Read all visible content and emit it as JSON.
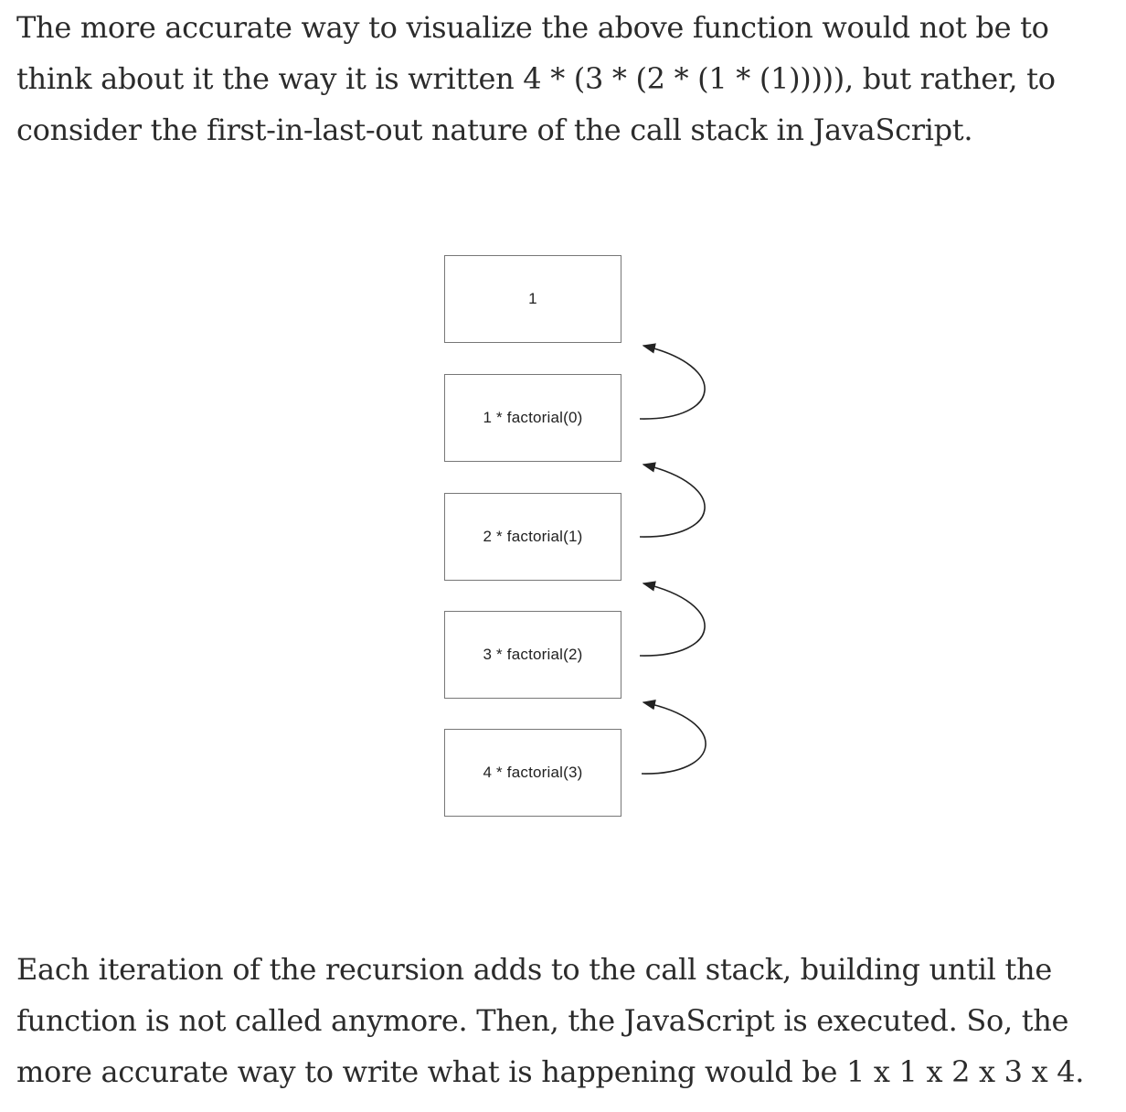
{
  "intro_paragraph": "The more accurate way to visualize the above function would not be to think about it the way it is written 4 * (3 * (2 * (1 * (1))))), but rather, to consider the first-in-last-out nature of the call stack in JavaScript.",
  "call_stack_diagram": {
    "frames": [
      {
        "label": "1"
      },
      {
        "label": "1 * factorial(0)"
      },
      {
        "label": "2 * factorial(1)"
      },
      {
        "label": "3 * factorial(2)"
      },
      {
        "label": "4 * factorial(3)"
      }
    ]
  },
  "conclusion_paragraph": "Each iteration of the recursion adds to the call stack, building until the function is not called anymore. Then, the JavaScript is executed. So, the more accurate way to write what is happening would be 1 x 1 x 2 x 3 x 4."
}
